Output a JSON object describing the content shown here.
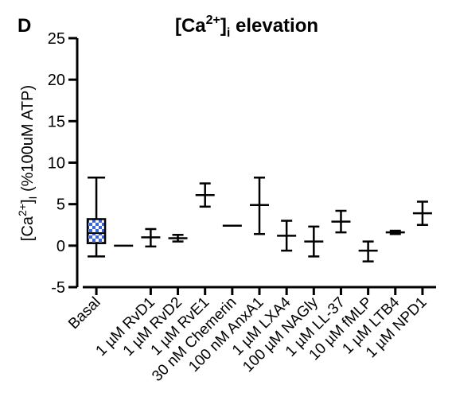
{
  "panel_label": "D",
  "title": {
    "main": "[Ca",
    "sup": "2+",
    "close": "]",
    "sub": "i",
    "rest": " elevation"
  },
  "ylabel": {
    "main": "[Ca",
    "sup": "2+",
    "close": "]",
    "sub": "I",
    "rest": " (%100uM ATP)"
  },
  "chart_data": {
    "type": "box",
    "title": "[Ca2+]i elevation",
    "ylabel": "[Ca2+]I (%100uM ATP)",
    "ylim": [
      -5,
      25
    ],
    "yticks": [
      -5,
      0,
      5,
      10,
      15,
      20,
      25
    ],
    "grid": false,
    "legend": "none",
    "categories": [
      "Basal",
      "1 µM RvD1",
      "1 µM RvD2",
      "1 µM RvE1",
      "30 nM Chemerin",
      "100 nM AnxA1",
      "1 µM LXA4",
      "100 µM NAGly",
      "1 µM LL-37",
      "10 µM fMLP",
      "1 µM LTB4",
      "1 µM NPD1"
    ],
    "boxes": [
      {
        "style": "box",
        "min": -1.3,
        "q1": 0.3,
        "median": 1.5,
        "q3": 3.2,
        "max": 8.2
      },
      {
        "style": "whisker",
        "min": 0.0,
        "median": 0.0,
        "max": 0.0
      },
      {
        "style": "whisker",
        "min": -0.1,
        "median": 1.0,
        "max": 2.0
      },
      {
        "style": "whisker",
        "min": 0.5,
        "median": 0.9,
        "max": 1.3
      },
      {
        "style": "whisker",
        "min": 4.7,
        "median": 6.1,
        "max": 7.5
      },
      {
        "style": "whisker",
        "min": 2.4,
        "median": 2.4,
        "max": 2.4
      },
      {
        "style": "whisker",
        "min": 1.4,
        "median": 4.9,
        "max": 8.2
      },
      {
        "style": "whisker",
        "min": -0.6,
        "median": 1.2,
        "max": 3.0
      },
      {
        "style": "whisker",
        "min": -1.3,
        "median": 0.5,
        "max": 2.3
      },
      {
        "style": "whisker",
        "min": 1.6,
        "median": 2.9,
        "max": 4.2
      },
      {
        "style": "whisker",
        "min": -1.9,
        "median": -0.6,
        "max": 0.5
      },
      {
        "style": "whisker",
        "min": 1.4,
        "median": 1.6,
        "max": 1.8
      },
      {
        "style": "whisker",
        "min": 2.5,
        "median": 3.9,
        "max": 5.3
      }
    ]
  },
  "colors": {
    "axis": "#000000",
    "box_fill_a": "#3b66e0",
    "box_fill_b": "#ffffff"
  }
}
